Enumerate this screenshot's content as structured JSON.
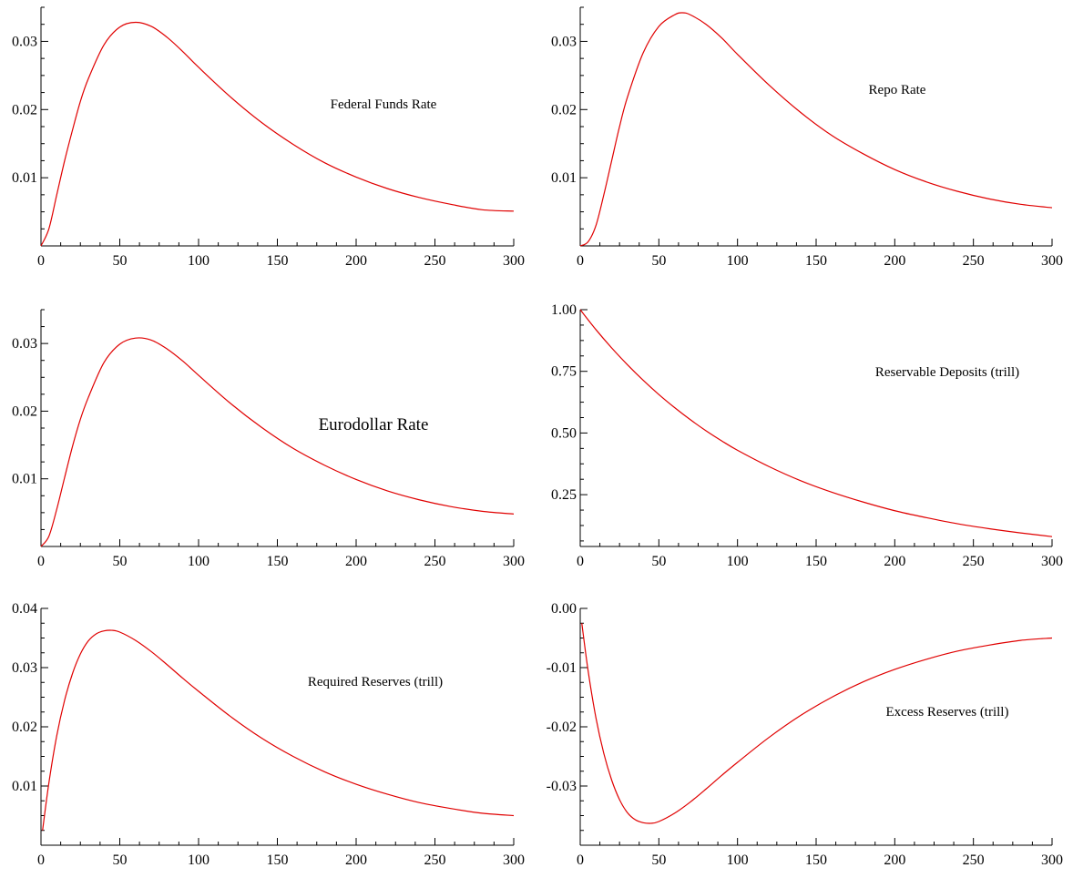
{
  "colors": {
    "series": "#e00000",
    "axis": "#000000",
    "background": "#ffffff"
  },
  "chart_data": [
    {
      "type": "line",
      "title": "Federal Funds Rate",
      "xlim": [
        0,
        300
      ],
      "ylim": [
        0,
        0.035
      ],
      "xticks": [
        0,
        50,
        100,
        150,
        200,
        250,
        300
      ],
      "xtick_labels": [
        "0",
        "50",
        "100",
        "150",
        "200",
        "250",
        "300"
      ],
      "yticks": [
        0.01,
        0.02,
        0.03
      ],
      "ytick_labels": [
        "0.01",
        "0.02",
        "0.03"
      ],
      "grid": false,
      "series": [
        {
          "x": [
            0,
            5,
            10,
            15,
            20,
            25,
            30,
            40,
            50,
            60,
            70,
            80,
            90,
            100,
            120,
            140,
            160,
            180,
            200,
            220,
            240,
            260,
            280,
            300
          ],
          "y": [
            0.0,
            0.0025,
            0.0075,
            0.0125,
            0.017,
            0.0212,
            0.0245,
            0.0295,
            0.0321,
            0.0328,
            0.0322,
            0.0306,
            0.0285,
            0.0262,
            0.0219,
            0.0181,
            0.0149,
            0.0122,
            0.0101,
            0.0084,
            0.0071,
            0.0061,
            0.0053,
            0.0051
          ]
        }
      ]
    },
    {
      "type": "line",
      "title": "Repo Rate",
      "xlim": [
        0,
        300
      ],
      "ylim": [
        0,
        0.035
      ],
      "xticks": [
        0,
        50,
        100,
        150,
        200,
        250,
        300
      ],
      "xtick_labels": [
        "0",
        "50",
        "100",
        "150",
        "200",
        "250",
        "300"
      ],
      "yticks": [
        0.01,
        0.02,
        0.03
      ],
      "ytick_labels": [
        "0.01",
        "0.02",
        "0.03"
      ],
      "grid": false,
      "series": [
        {
          "x": [
            0,
            5,
            10,
            15,
            20,
            25,
            30,
            40,
            50,
            60,
            65,
            70,
            80,
            90,
            100,
            120,
            140,
            160,
            180,
            200,
            220,
            240,
            260,
            280,
            300
          ],
          "y": [
            0.0,
            0.0006,
            0.003,
            0.0075,
            0.0125,
            0.0175,
            0.0218,
            0.0283,
            0.0322,
            0.0339,
            0.0342,
            0.0339,
            0.0325,
            0.0305,
            0.0281,
            0.0236,
            0.0196,
            0.0162,
            0.0135,
            0.0112,
            0.0094,
            0.008,
            0.0069,
            0.0061,
            0.0056
          ]
        }
      ]
    },
    {
      "type": "line",
      "title": "Eurodollar Rate",
      "xlim": [
        0,
        300
      ],
      "ylim": [
        0,
        0.035
      ],
      "xticks": [
        0,
        50,
        100,
        150,
        200,
        250,
        300
      ],
      "xtick_labels": [
        "0",
        "50",
        "100",
        "150",
        "200",
        "250",
        "300"
      ],
      "yticks": [
        0.01,
        0.02,
        0.03
      ],
      "ytick_labels": [
        "0.01",
        "0.02",
        "0.03"
      ],
      "grid": false,
      "series": [
        {
          "x": [
            0,
            5,
            10,
            15,
            20,
            25,
            30,
            40,
            50,
            60,
            70,
            80,
            90,
            100,
            120,
            140,
            160,
            180,
            200,
            220,
            240,
            260,
            280,
            300
          ],
          "y": [
            0.0,
            0.0015,
            0.0055,
            0.0102,
            0.0148,
            0.0188,
            0.022,
            0.0272,
            0.0299,
            0.0308,
            0.0305,
            0.0292,
            0.0274,
            0.0253,
            0.0212,
            0.0176,
            0.0145,
            0.012,
            0.0099,
            0.0082,
            0.0069,
            0.0059,
            0.0052,
            0.0048
          ]
        }
      ]
    },
    {
      "type": "line",
      "title": "Reservable Deposits (trill)",
      "xlim": [
        0,
        300
      ],
      "ylim": [
        0.04,
        1.0
      ],
      "xticks": [
        0,
        50,
        100,
        150,
        200,
        250,
        300
      ],
      "xtick_labels": [
        "0",
        "50",
        "100",
        "150",
        "200",
        "250",
        "300"
      ],
      "yticks": [
        0.25,
        0.5,
        0.75,
        1.0
      ],
      "ytick_labels": [
        "0.25",
        "0.50",
        "0.75",
        "1.00"
      ],
      "grid": false,
      "series": [
        {
          "x": [
            0,
            10,
            20,
            30,
            40,
            50,
            60,
            70,
            80,
            90,
            100,
            120,
            140,
            160,
            180,
            200,
            220,
            240,
            260,
            280,
            300
          ],
          "y": [
            1.0,
            0.919,
            0.845,
            0.777,
            0.714,
            0.656,
            0.603,
            0.554,
            0.509,
            0.468,
            0.43,
            0.364,
            0.307,
            0.26,
            0.22,
            0.185,
            0.157,
            0.132,
            0.112,
            0.095,
            0.08
          ]
        }
      ]
    },
    {
      "type": "line",
      "title": "Required Reserves (trill)",
      "xlim": [
        0,
        300
      ],
      "ylim": [
        0,
        0.04
      ],
      "xticks": [
        0,
        50,
        100,
        150,
        200,
        250,
        300
      ],
      "xtick_labels": [
        "0",
        "50",
        "100",
        "150",
        "200",
        "250",
        "300"
      ],
      "yticks": [
        0.01,
        0.02,
        0.03,
        0.04
      ],
      "ytick_labels": [
        "0.01",
        "0.02",
        "0.03",
        "0.04"
      ],
      "grid": false,
      "series": [
        {
          "x": [
            1,
            5,
            10,
            15,
            20,
            25,
            30,
            35,
            40,
            45,
            50,
            60,
            70,
            80,
            90,
            100,
            120,
            140,
            160,
            180,
            200,
            220,
            240,
            260,
            280,
            300
          ],
          "y": [
            0.0025,
            0.0105,
            0.0185,
            0.0245,
            0.029,
            0.0323,
            0.0345,
            0.0357,
            0.0362,
            0.0363,
            0.036,
            0.0346,
            0.0327,
            0.0305,
            0.0282,
            0.026,
            0.0218,
            0.0181,
            0.015,
            0.0124,
            0.0103,
            0.0086,
            0.0072,
            0.0062,
            0.0054,
            0.005
          ]
        }
      ]
    },
    {
      "type": "line",
      "title": "Excess Reserves (trill)",
      "xlim": [
        0,
        300
      ],
      "ylim": [
        -0.04,
        0.0
      ],
      "xticks": [
        0,
        50,
        100,
        150,
        200,
        250,
        300
      ],
      "xtick_labels": [
        "0",
        "50",
        "100",
        "150",
        "200",
        "250",
        "300"
      ],
      "yticks": [
        -0.03,
        -0.02,
        -0.01,
        0.0
      ],
      "ytick_labels": [
        "-0.03",
        "-0.02",
        "-0.01",
        "0.00"
      ],
      "grid": false,
      "series": [
        {
          "x": [
            1,
            5,
            10,
            15,
            20,
            25,
            30,
            35,
            40,
            45,
            50,
            60,
            70,
            80,
            90,
            100,
            120,
            140,
            160,
            180,
            200,
            220,
            240,
            260,
            280,
            300
          ],
          "y": [
            -0.0025,
            -0.0105,
            -0.0185,
            -0.0245,
            -0.029,
            -0.0323,
            -0.0345,
            -0.0357,
            -0.0362,
            -0.0363,
            -0.036,
            -0.0346,
            -0.0327,
            -0.0305,
            -0.0282,
            -0.026,
            -0.0218,
            -0.0181,
            -0.015,
            -0.0124,
            -0.0103,
            -0.0086,
            -0.0072,
            -0.0062,
            -0.0054,
            -0.005
          ]
        }
      ]
    }
  ]
}
